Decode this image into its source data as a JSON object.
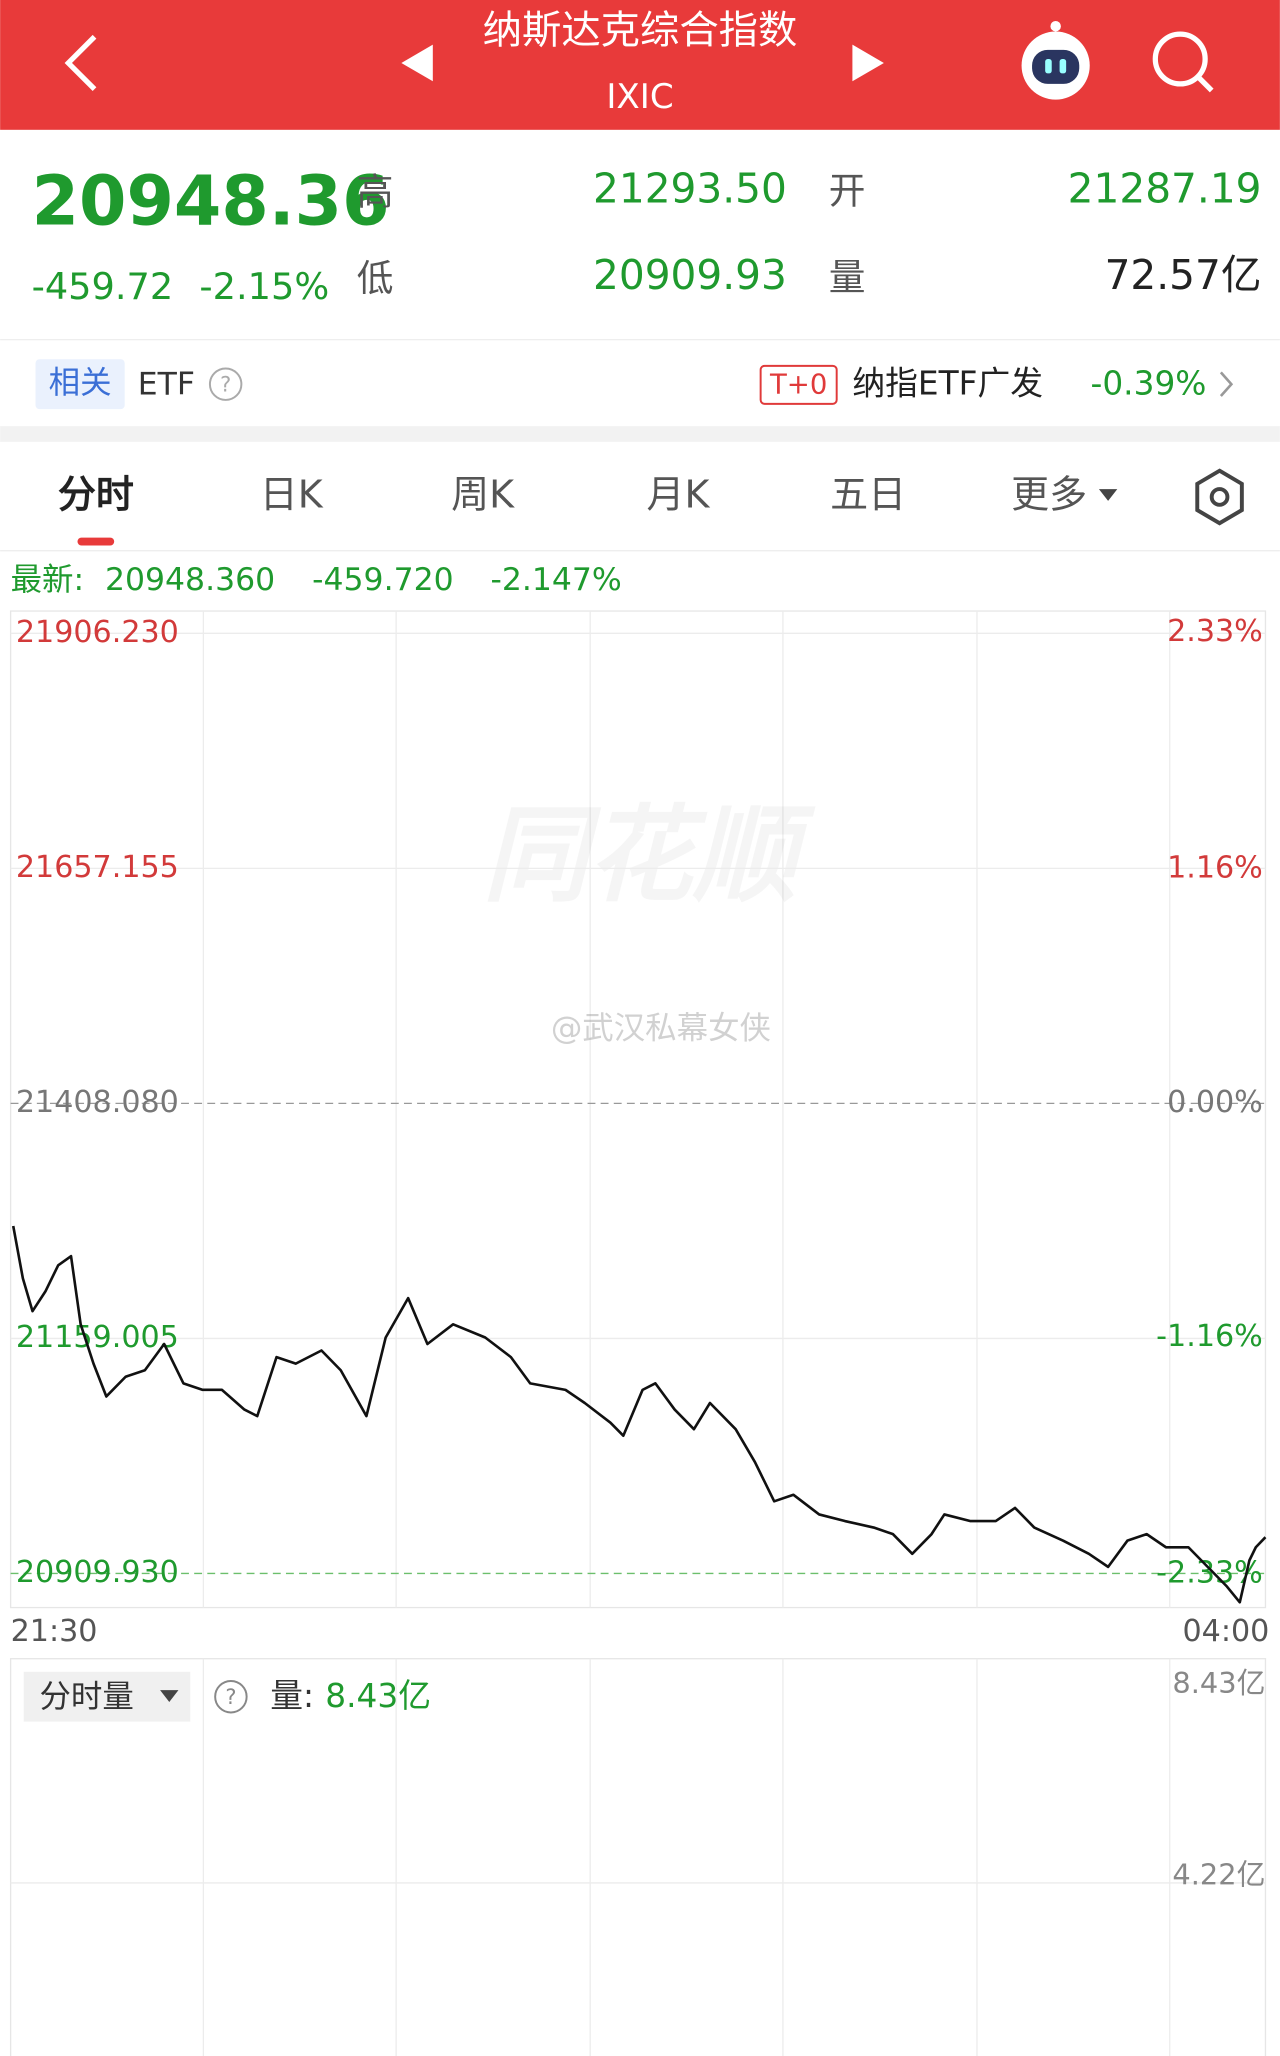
{
  "header": {
    "title": "纳斯达克综合指数",
    "code": "IXIC"
  },
  "quote": {
    "price": "20948.36",
    "change": "-459.72",
    "change_pct": "-2.15%",
    "high_label": "高",
    "high": "21293.50",
    "low_label": "低",
    "low": "20909.93",
    "open_label": "开",
    "open": "21287.19",
    "volume_label": "量",
    "volume": "72.57亿"
  },
  "etf": {
    "tag": "相关",
    "label": "ETF",
    "badge": "T+0",
    "name": "纳指ETF广发",
    "change": "-0.39%"
  },
  "tabs": [
    "分时",
    "日K",
    "周K",
    "月K",
    "五日",
    "更多"
  ],
  "latest": {
    "label": "最新:",
    "price": "20948.360",
    "change": "-459.720",
    "change_pct": "-2.147%"
  },
  "watermark_brand": "同花顺",
  "watermark": "@武汉私幕女侠",
  "chart_data": {
    "type": "line",
    "x": [
      0,
      3,
      6,
      10,
      14,
      18,
      21,
      25,
      29,
      35,
      41,
      47,
      53,
      59,
      65,
      72,
      76,
      82,
      88,
      96,
      102,
      110,
      116,
      123,
      129,
      137,
      147,
      155,
      161,
      172,
      178,
      186,
      190,
      196,
      200,
      206,
      212,
      217,
      225,
      231,
      237,
      243,
      251,
      259,
      268,
      274,
      280,
      286,
      290,
      298,
      306,
      312,
      318,
      327,
      335,
      341,
      347,
      353,
      359,
      366,
      372,
      378,
      382,
      385,
      387,
      390
    ],
    "values": [
      21278.1,
      21222.6,
      21187.9,
      21208.7,
      21236.5,
      21246.2,
      21174.0,
      21132.3,
      21097.5,
      21118.4,
      21125.3,
      21153.1,
      21111.4,
      21104.5,
      21104.5,
      21083.6,
      21076.7,
      21139.2,
      21132.3,
      21146.2,
      21125.3,
      21076.7,
      21160.0,
      21201.7,
      21153.1,
      21174.0,
      21160.0,
      21139.2,
      21111.4,
      21104.5,
      21090.6,
      21069.7,
      21055.9,
      21104.5,
      21111.4,
      21083.6,
      21062.8,
      21090.6,
      21062.8,
      21028.0,
      20986.4,
      20993.3,
      20972.5,
      20965.5,
      20958.6,
      20951.6,
      20930.8,
      20951.6,
      20972.5,
      20965.5,
      20965.5,
      20979.4,
      20958.6,
      20944.7,
      20930.8,
      20916.9,
      20944.7,
      20951.6,
      20937.7,
      20937.7,
      20916.9,
      20896.1,
      20879.4,
      20923.8,
      20937.7,
      20948.36
    ],
    "color": "#111111",
    "xlim": [
      0,
      390
    ],
    "xticks": [
      {
        "value": 0,
        "label": "21:30"
      },
      {
        "value": 390,
        "label": "04:00"
      }
    ],
    "ylim": [
      20873.8,
      21929.85
    ],
    "yticks": [
      {
        "value": 21906.23,
        "label": "21906.230"
      },
      {
        "value": 21657.155,
        "label": "21657.155"
      },
      {
        "value": 21408.08,
        "label": "21408.080"
      },
      {
        "value": 21159.005,
        "label": "21159.005"
      },
      {
        "value": 20909.93,
        "label": "20909.930"
      }
    ],
    "y2lim": [
      -2.496,
      2.437
    ],
    "y2ticks": [
      {
        "value": 2.33,
        "label": "2.33%"
      },
      {
        "value": 1.16,
        "label": "1.16%"
      },
      {
        "value": 0,
        "label": "0.00%"
      },
      {
        "value": -1.16,
        "label": "-1.16%"
      },
      {
        "value": -2.33,
        "label": "-2.33%"
      }
    ]
  },
  "volume_panel": {
    "selector": "分时量",
    "label": "量:",
    "value": "8.43亿",
    "ticks": [
      "8.43亿",
      "4.22亿"
    ]
  }
}
